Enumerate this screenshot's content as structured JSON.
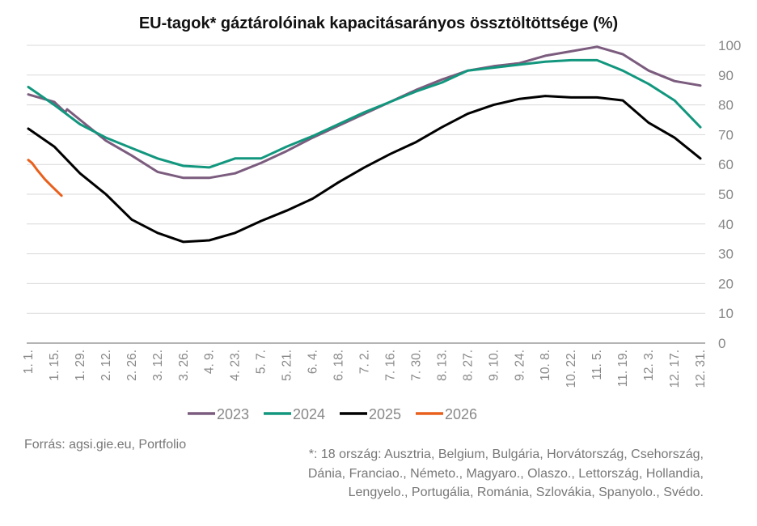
{
  "chart_data": {
    "type": "line",
    "title": "EU-tagok* gáztárolóinak kapacitásarányos össztöltöttsége (%)",
    "xlabel": "",
    "ylabel": "",
    "ylim": [
      0,
      100
    ],
    "yticks": [
      0,
      10,
      20,
      30,
      40,
      50,
      60,
      70,
      80,
      90,
      100
    ],
    "y_axis_side": "right",
    "grid": true,
    "legend": "bottom",
    "categories": [
      "1. 1.",
      "1. 15.",
      "1. 29.",
      "2. 12.",
      "2. 26.",
      "3. 12.",
      "3. 26.",
      "4. 9.",
      "4. 23.",
      "5. 7.",
      "5. 21.",
      "6. 4.",
      "6. 18.",
      "7. 2.",
      "7. 16.",
      "7. 30.",
      "8. 13.",
      "8. 27.",
      "9. 10.",
      "9. 24.",
      "10. 8.",
      "10. 22.",
      "11. 5.",
      "11. 19.",
      "12. 3.",
      "12. 17.",
      "12. 31."
    ],
    "series": [
      {
        "name": "2023",
        "color": "#7b5c7e",
        "x": [
          "1. 1.",
          "1. 15.",
          "1. 21.",
          "1. 22.",
          "1. 29.",
          "2. 12.",
          "2. 26.",
          "3. 12.",
          "3. 26.",
          "4. 9.",
          "4. 23.",
          "5. 7.",
          "5. 21.",
          "6. 4.",
          "6. 18.",
          "7. 2.",
          "7. 16.",
          "7. 30.",
          "8. 13.",
          "8. 27.",
          "9. 10.",
          "9. 24.",
          "10. 8.",
          "10. 22.",
          "11. 5.",
          "11. 19.",
          "12. 3.",
          "12. 17.",
          "12. 31."
        ],
        "values": [
          83.5,
          81,
          77.5,
          78.5,
          75,
          68,
          63,
          57.5,
          55.5,
          55.5,
          57,
          60.5,
          64.5,
          69,
          73,
          77,
          81,
          85,
          88.5,
          91.5,
          93,
          94,
          96.5,
          98,
          99.5,
          97,
          91.5,
          88,
          86.5
        ]
      },
      {
        "name": "2024",
        "color": "#12977e",
        "x": [
          "1. 1.",
          "1. 15.",
          "1. 29.",
          "2. 12.",
          "2. 26.",
          "3. 12.",
          "3. 26.",
          "4. 9.",
          "4. 23.",
          "5. 7.",
          "5. 21.",
          "6. 4.",
          "6. 18.",
          "7. 2.",
          "7. 16.",
          "7. 30.",
          "8. 13.",
          "8. 27.",
          "9. 10.",
          "9. 24.",
          "10. 8.",
          "10. 22.",
          "11. 5.",
          "11. 19.",
          "12. 3.",
          "12. 17.",
          "12. 31."
        ],
        "values": [
          86,
          80,
          73.5,
          69,
          65.5,
          62,
          59.5,
          59,
          62,
          62,
          66,
          69.5,
          73.5,
          77.5,
          81,
          84.5,
          87.5,
          91.5,
          92.5,
          93.5,
          94.5,
          95,
          95,
          91.5,
          87,
          81.5,
          72.5
        ]
      },
      {
        "name": "2025",
        "color": "#000000",
        "x": [
          "1. 1.",
          "1. 15.",
          "1. 29.",
          "2. 12.",
          "2. 26.",
          "3. 12.",
          "3. 26.",
          "4. 9.",
          "4. 23.",
          "5. 7.",
          "5. 21.",
          "6. 4.",
          "6. 18.",
          "7. 2.",
          "7. 16.",
          "7. 30.",
          "8. 13.",
          "8. 27.",
          "9. 10.",
          "9. 24.",
          "10. 8.",
          "10. 22.",
          "11. 5.",
          "11. 19.",
          "12. 3.",
          "12. 17.",
          "12. 31."
        ],
        "values": [
          72,
          66,
          57,
          50,
          41.5,
          37,
          34,
          34.5,
          37,
          41,
          44.5,
          48.5,
          54,
          59,
          63.5,
          67.5,
          72.5,
          77,
          80,
          82,
          83,
          82.5,
          82.5,
          81.5,
          74,
          69,
          62
        ]
      },
      {
        "name": "2026",
        "color": "#e8601c",
        "x": [
          "1. 1.",
          "1. 3.",
          "1. 6.",
          "1. 10.",
          "1. 14.",
          "1. 19."
        ],
        "values": [
          61.5,
          60.5,
          58,
          55,
          52.5,
          49.5
        ]
      }
    ]
  },
  "footer": {
    "source": "Forrás: agsi.gie.eu, Portfolio",
    "note_lines": [
      "*: 18 ország: Ausztria, Belgium, Bulgária, Horvátország, Csehország,",
      "Dánia, Franciao., Németo., Magyaro., Olaszo., Lettország, Hollandia,",
      "Lengyelo., Portugália, Románia, Szlovákia, Spanyolo., Svédo."
    ]
  }
}
